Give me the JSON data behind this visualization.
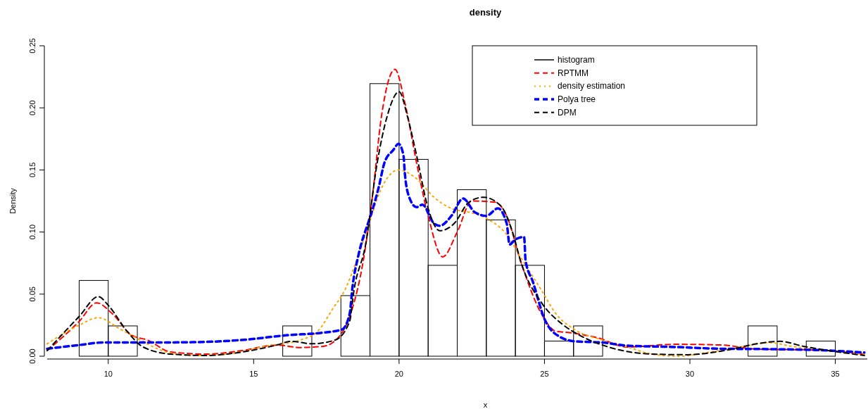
{
  "chart_data": {
    "type": "histogram",
    "title": "density",
    "xlabel": "x",
    "ylabel": "Density",
    "xlim": [
      7.9,
      36.1
    ],
    "xticks": [
      10,
      15,
      20,
      25,
      30,
      35
    ],
    "ylim": [
      0,
      0.25
    ],
    "yticks": [
      {
        "value": 0,
        "label": "0.00"
      },
      {
        "value": 0.05,
        "label": "0.05"
      },
      {
        "value": 0.1,
        "label": "0.10"
      },
      {
        "value": 0.15,
        "label": "0.15"
      },
      {
        "value": 0.2,
        "label": "0.20"
      },
      {
        "value": 0.25,
        "label": "0.25"
      }
    ],
    "legend": "top right",
    "grid": false,
    "bins": [
      9,
      10,
      11,
      12,
      13,
      14,
      15,
      16,
      17,
      18,
      19,
      20,
      21,
      22,
      23,
      24,
      25,
      26,
      27,
      28,
      29,
      30,
      31,
      32,
      33,
      34,
      35
    ],
    "series": [
      {
        "name": "histogram",
        "type": "histogram",
        "color": "#000000",
        "line_style": "solid",
        "values": [
          0.061,
          0.0244,
          0,
          0,
          0,
          0,
          0,
          0.0244,
          0,
          0.0488,
          0.2195,
          0.1585,
          0.0732,
          0.1341,
          0.1098,
          0.0732,
          0.0122,
          0.0244,
          0,
          0,
          0,
          0,
          0,
          0.0244,
          0,
          0.0122
        ]
      },
      {
        "name": "RPTMM",
        "type": "line",
        "color": "#ff0000",
        "line_style": "dashed",
        "x": [
          7.9,
          9.0,
          9.6,
          10.15,
          10.8,
          11.35,
          12.15,
          13.4,
          14.6,
          15.8,
          16.6,
          17.4,
          18.04,
          18.36,
          18.77,
          19.08,
          19.4,
          19.86,
          20.2,
          20.6,
          21.0,
          21.5,
          22.0,
          22.5,
          23.3,
          23.7,
          24.2,
          24.9,
          25.4,
          25.85,
          26.8,
          27.85,
          29.5,
          31.1,
          32.3,
          34.3,
          36.0
        ],
        "values": [
          0.0045,
          0.028,
          0.043,
          0.034,
          0.017,
          0.013,
          0.0034,
          0.0017,
          0.0045,
          0.009,
          0.007,
          0.008,
          0.019,
          0.036,
          0.077,
          0.128,
          0.194,
          0.231,
          0.204,
          0.156,
          0.113,
          0.08,
          0.1,
          0.125,
          0.124,
          0.113,
          0.075,
          0.034,
          0.02,
          0.019,
          0.015,
          0.0074,
          0.0096,
          0.009,
          0.0057,
          0.005,
          0.0017
        ]
      },
      {
        "name": "density estimation",
        "type": "line",
        "color": "#ffa500",
        "line_style": "dotted",
        "x": [
          7.9,
          9.0,
          9.66,
          10.4,
          11.1,
          12.0,
          13.0,
          14.2,
          15.4,
          16.6,
          17.2,
          17.8,
          18.04,
          18.6,
          19.0,
          19.3,
          19.98,
          20.6,
          21.2,
          21.8,
          22.4,
          23.0,
          23.7,
          24.2,
          24.9,
          25.4,
          26.0,
          27.0,
          27.85,
          28.7,
          29.6,
          30.7,
          31.9,
          32.7,
          33.5,
          34.7,
          36.0
        ],
        "values": [
          0.01,
          0.025,
          0.031,
          0.022,
          0.013,
          0.0034,
          0.0006,
          0.002,
          0.008,
          0.013,
          0.02,
          0.041,
          0.049,
          0.081,
          0.109,
          0.13,
          0.15,
          0.143,
          0.128,
          0.119,
          0.116,
          0.111,
          0.098,
          0.079,
          0.053,
          0.034,
          0.022,
          0.013,
          0.0074,
          0.0017,
          0,
          0.0034,
          0.008,
          0.011,
          0.008,
          0.0045,
          0.0017
        ]
      },
      {
        "name": "Polya tree",
        "type": "line",
        "color": "#0000ff",
        "line_style": "dashed",
        "x": [
          7.9,
          9.0,
          9.8,
          11.35,
          12.95,
          14.55,
          16.2,
          17.4,
          18.04,
          18.3,
          18.4,
          18.6,
          18.96,
          19.1,
          19.3,
          19.5,
          19.8,
          19.98,
          20.15,
          20.2,
          20.35,
          20.6,
          20.8,
          21.2,
          21.4,
          21.8,
          22.2,
          22.6,
          23.0,
          23.4,
          23.7,
          23.8,
          24.0,
          24.3,
          24.35,
          24.6,
          25.0,
          25.5,
          26.05,
          27.0,
          27.85,
          29.5,
          31.1,
          32.7,
          34.3,
          36.0
        ],
        "values": [
          0.006,
          0.009,
          0.011,
          0.011,
          0.0113,
          0.013,
          0.017,
          0.019,
          0.0215,
          0.034,
          0.056,
          0.081,
          0.109,
          0.119,
          0.136,
          0.156,
          0.166,
          0.171,
          0.162,
          0.147,
          0.128,
          0.12,
          0.122,
          0.107,
          0.105,
          0.113,
          0.127,
          0.116,
          0.113,
          0.119,
          0.107,
          0.09,
          0.094,
          0.096,
          0.077,
          0.06,
          0.03,
          0.016,
          0.012,
          0.011,
          0.0085,
          0.0074,
          0.006,
          0.0057,
          0.005,
          0.003
        ]
      },
      {
        "name": "DPM",
        "type": "line",
        "color": "#000000",
        "line_style": "dashed",
        "x": [
          7.9,
          9.0,
          9.66,
          10.0,
          10.65,
          11.2,
          12.15,
          13.4,
          14.6,
          15.8,
          16.3,
          17.0,
          17.8,
          18.3,
          18.45,
          18.85,
          19.25,
          19.6,
          20.0,
          20.3,
          20.6,
          21.0,
          21.4,
          21.9,
          22.4,
          22.9,
          23.5,
          23.9,
          24.2,
          24.9,
          25.6,
          26.2,
          27.2,
          28.7,
          29.9,
          31.3,
          32.3,
          33.1,
          33.9,
          35.1,
          36.0
        ],
        "values": [
          0.0045,
          0.032,
          0.048,
          0.041,
          0.02,
          0.0074,
          0.0017,
          0.0006,
          0.0034,
          0.009,
          0.012,
          0.01,
          0.013,
          0.028,
          0.053,
          0.09,
          0.156,
          0.194,
          0.213,
          0.192,
          0.162,
          0.119,
          0.101,
          0.107,
          0.124,
          0.128,
          0.121,
          0.1,
          0.075,
          0.043,
          0.026,
          0.017,
          0.0074,
          0.0017,
          0.0012,
          0.005,
          0.01,
          0.012,
          0.008,
          0.0034,
          0.0006
        ]
      }
    ]
  }
}
